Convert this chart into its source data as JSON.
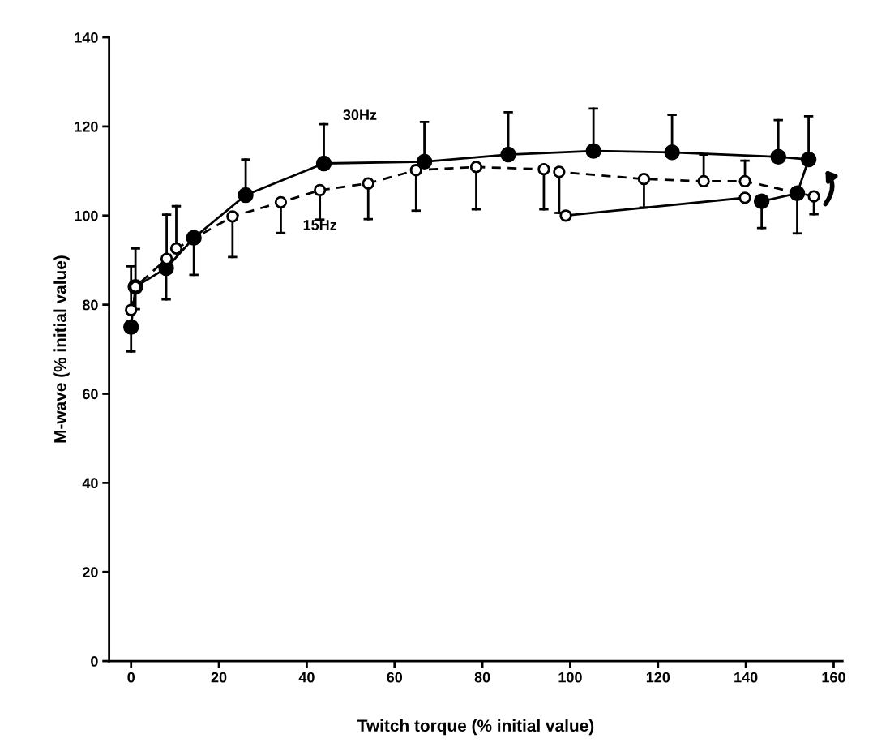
{
  "chart_data": {
    "type": "line",
    "xlabel": "Twitch torque (% initial value)",
    "ylabel": "M-wave (% initial value)",
    "xlim": [
      -5,
      162
    ],
    "ylim": [
      0,
      140
    ],
    "xticks": [
      0,
      20,
      40,
      60,
      80,
      100,
      120,
      140,
      160
    ],
    "yticks": [
      0,
      20,
      40,
      60,
      80,
      100,
      120,
      140
    ],
    "grid": false,
    "legend": false,
    "series": [
      {
        "name": "30Hz",
        "color": "#000000",
        "marker": "circle",
        "line_style": "solid",
        "x": [
          0,
          1,
          8,
          14.3,
          26.1,
          43.9,
          66.8,
          85.9,
          105.3,
          123.2,
          147.4,
          154.3,
          151.7,
          143.6
        ],
        "values": [
          75,
          84,
          88.2,
          95,
          104.6,
          111.7,
          112.1,
          113.7,
          114.5,
          114.2,
          113.2,
          112.6,
          105,
          103.2
        ],
        "errors": [
          [
            69.5,
            75
          ],
          [
            79,
            92.6
          ],
          [
            81.2,
            88.2
          ],
          [
            86.7,
            95
          ],
          [
            104.6,
            112.6
          ],
          [
            111.7,
            120.5
          ],
          [
            112.1,
            121
          ],
          [
            113.7,
            123.2
          ],
          [
            114.5,
            124
          ],
          [
            114.2,
            122.6
          ],
          [
            113.2,
            121.4
          ],
          [
            112.6,
            122.3
          ],
          [
            96,
            105
          ],
          [
            97.2,
            103.2
          ]
        ]
      },
      {
        "name": "15Hz",
        "color": "#000000",
        "marker": "circle",
        "line_style": "dashed",
        "x": [
          0,
          1,
          8.1,
          10.3,
          23.1,
          34.1,
          43,
          54,
          64.9,
          78.6,
          94,
          97.5,
          116.8,
          130.4,
          139.8,
          155.5
        ],
        "values": [
          78.8,
          84,
          90.3,
          92.6,
          99.8,
          103,
          105.7,
          107.2,
          110.2,
          110.9,
          110.4,
          109.8,
          108.2,
          107.7,
          107.7,
          104.3
        ],
        "errors": [
          [
            78.8,
            88.6
          ],
          null,
          [
            90.3,
            100.2
          ],
          [
            92.6,
            102.1
          ],
          [
            90.7,
            99.8
          ],
          [
            96.1,
            103
          ],
          [
            99.1,
            105.7
          ],
          [
            99.2,
            107.2
          ],
          [
            101.1,
            110.2
          ],
          [
            101.4,
            110.9
          ],
          [
            101.4,
            110.4
          ],
          [
            100.6,
            109.8
          ],
          [
            101.8,
            108.2
          ],
          [
            107.7,
            113.7
          ],
          [
            107.7,
            112.3
          ],
          [
            100.3,
            104.3
          ]
        ]
      },
      {
        "color": "#000000",
        "marker": "circle",
        "line_style": "solid",
        "x": [
          139.8,
          99
        ],
        "values": [
          104,
          100
        ]
      }
    ]
  }
}
